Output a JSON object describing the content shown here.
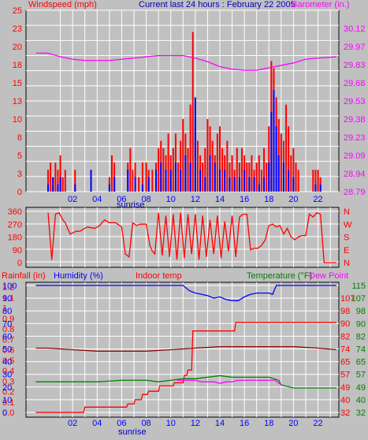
{
  "colors": {
    "background": "#c0c0c0",
    "grid": "#ffffff",
    "red": "#ff0000",
    "blue": "#0000ff",
    "magenta": "#ff00ff",
    "green": "#008000",
    "darkred": "#8b0000"
  },
  "chart_data": [
    {
      "type": "bar",
      "title": "Current last 24 hours : February 22 2005",
      "ylabel_left": "Windspeed (mph)",
      "ylabel_right": "Barometer (in.)",
      "x_ticks": [
        "02",
        "04",
        "06",
        "08",
        "10",
        "12",
        "14",
        "16",
        "18",
        "20",
        "22"
      ],
      "x_marker": "sunrise",
      "y_left_ticks": [
        "25",
        "23",
        "21",
        "19",
        "17",
        "15",
        "13",
        "11",
        "9",
        "7",
        "5",
        "3",
        "1"
      ],
      "y_left_labels": [
        "25",
        "23",
        "20",
        "18",
        "15",
        "13",
        "10",
        "8",
        "5",
        "3",
        "0"
      ],
      "y_right_labels": [
        "30.12",
        "29.97",
        "29.83",
        "29.68",
        "29.53",
        "29.38",
        "29.23",
        "29.09",
        "28.94",
        "28.79"
      ],
      "ylim_left": [
        0,
        25
      ],
      "ylim_right": [
        28.79,
        30.27
      ],
      "series": [
        {
          "name": "Windspeed (mph)",
          "color": "red",
          "type": "bar",
          "x": [
            0.0,
            0.2,
            0.4,
            0.6,
            0.8,
            1.0,
            1.2,
            1.4,
            2.2,
            3.5,
            5.0,
            5.2,
            5.4,
            6.5,
            6.7,
            6.9,
            7.1,
            7.4,
            7.7,
            8.0,
            8.2,
            8.5,
            8.8,
            9.0,
            9.2,
            9.4,
            9.6,
            9.8,
            10.0,
            10.2,
            10.4,
            10.6,
            10.8,
            11.0,
            11.2,
            11.4,
            11.6,
            11.8,
            12.0,
            12.2,
            12.4,
            12.6,
            12.8,
            13.0,
            13.2,
            13.4,
            13.6,
            13.8,
            14.0,
            14.2,
            14.4,
            14.6,
            14.8,
            15.0,
            15.2,
            15.4,
            15.6,
            15.8,
            16.0,
            16.2,
            16.4,
            16.6,
            16.8,
            17.0,
            17.2,
            17.4,
            17.6,
            17.8,
            18.0,
            18.2,
            18.4,
            18.6,
            18.8,
            19.0,
            19.2,
            19.4,
            19.6,
            19.8,
            20.0,
            20.2,
            20.4,
            21.6,
            21.8,
            22.0,
            22.2
          ],
          "values": [
            3,
            4,
            2,
            4,
            3,
            5,
            2,
            3,
            3,
            3,
            2,
            5,
            4,
            4,
            6,
            3,
            4,
            2,
            4,
            4,
            3,
            3,
            4,
            6,
            7,
            6,
            5,
            8,
            5,
            6,
            8,
            4,
            7,
            10,
            8,
            6,
            12,
            22,
            9,
            7,
            5,
            4,
            6,
            10,
            9,
            7,
            5,
            8,
            9,
            6,
            5,
            7,
            4,
            5,
            3,
            6,
            4,
            6,
            5,
            4,
            4,
            5,
            3,
            4,
            5,
            3,
            6,
            4,
            9,
            18,
            17,
            13,
            10,
            8,
            7,
            12,
            9,
            5,
            6,
            4,
            3,
            3,
            3,
            3,
            2
          ]
        },
        {
          "name": "Windspeed avg",
          "color": "blue",
          "type": "bar",
          "x": [
            0.0,
            0.4,
            0.8,
            1.0,
            2.2,
            3.5,
            5.0,
            5.4,
            6.5,
            7.1,
            7.7,
            8.2,
            8.8,
            9.2,
            9.6,
            10.0,
            10.4,
            10.8,
            11.2,
            11.6,
            12.0,
            12.4,
            12.8,
            13.2,
            13.6,
            14.0,
            14.4,
            14.8,
            15.2,
            15.6,
            16.0,
            16.4,
            16.8,
            17.2,
            17.6,
            18.0,
            18.2,
            18.4,
            18.6,
            18.8,
            19.2,
            19.6,
            20.0,
            21.8,
            22.2
          ],
          "values": [
            1,
            2,
            1,
            2,
            1,
            3,
            1,
            2,
            3,
            2,
            1,
            2,
            3,
            4,
            3,
            3,
            4,
            3,
            5,
            4,
            13,
            3,
            2,
            5,
            4,
            3,
            3,
            2,
            2,
            2,
            3,
            2,
            2,
            1,
            2,
            4,
            11,
            14,
            9,
            5,
            4,
            3,
            2,
            1,
            1
          ]
        },
        {
          "name": "Barometer (in.)",
          "color": "magenta",
          "type": "line",
          "x": [
            -1,
            0,
            1,
            2,
            3,
            4,
            5,
            6,
            7,
            8,
            9,
            10,
            11,
            12,
            13,
            14,
            15,
            16,
            17,
            18,
            19,
            20,
            21,
            22,
            23.5
          ],
          "values": [
            29.92,
            29.92,
            29.89,
            29.87,
            29.86,
            29.86,
            29.86,
            29.87,
            29.88,
            29.89,
            29.9,
            29.9,
            29.9,
            29.88,
            29.85,
            29.81,
            29.79,
            29.78,
            29.78,
            29.8,
            29.82,
            29.84,
            29.87,
            29.88,
            29.89
          ]
        }
      ]
    },
    {
      "type": "line",
      "ylabel_left": "",
      "y_left_labels": [
        "360",
        "270",
        "180",
        "90",
        "0"
      ],
      "y_right_labels": [
        "N",
        "W",
        "S",
        "E",
        "N"
      ],
      "ylim": [
        0,
        360
      ],
      "series": [
        {
          "name": "Wind direction",
          "color": "red",
          "x": [
            0,
            0.3,
            0.6,
            0.9,
            1.2,
            1.4,
            1.8,
            2.3,
            2.6,
            3.2,
            3.8,
            4.2,
            4.6,
            5.0,
            5.5,
            6.0,
            6.3,
            6.6,
            6.9,
            7.2,
            7.5,
            7.8,
            8.0,
            8.3,
            8.5,
            8.7,
            9.0,
            9.3,
            9.6,
            9.9,
            10.2,
            10.5,
            10.8,
            11.1,
            11.4,
            11.7,
            12.0,
            12.3,
            12.6,
            12.9,
            13.2,
            13.5,
            13.8,
            14.1,
            14.4,
            14.7,
            15.0,
            15.3,
            15.6,
            15.9,
            16.2,
            16.5,
            16.8,
            17.1,
            17.4,
            17.7,
            18.0,
            18.3,
            18.6,
            18.9,
            19.2,
            19.5,
            19.8,
            20.1,
            20.4,
            20.7,
            21.0,
            21.3,
            21.6,
            21.9,
            22.2,
            22.5,
            23.5
          ],
          "values": [
            350,
            20,
            340,
            350,
            300,
            280,
            200,
            220,
            220,
            250,
            240,
            260,
            300,
            280,
            280,
            250,
            60,
            40,
            280,
            260,
            270,
            270,
            270,
            120,
            80,
            60,
            350,
            50,
            330,
            40,
            340,
            20,
            350,
            30,
            340,
            60,
            340,
            20,
            330,
            40,
            300,
            60,
            330,
            30,
            290,
            80,
            330,
            40,
            320,
            340,
            340,
            90,
            100,
            100,
            120,
            160,
            260,
            270,
            250,
            260,
            200,
            240,
            180,
            160,
            180,
            190,
            190,
            340,
            320,
            350,
            340,
            0,
            0
          ]
        }
      ]
    },
    {
      "type": "line",
      "ylabel_left": "Rainfall (in)",
      "ylabel_mid": "Humidity (%)",
      "title": "Indoor temp",
      "ylabel_right": "Temperature (°F)",
      "ylabel_far_right": "Dew Point",
      "x_ticks": [
        "02",
        "04",
        "06",
        "08",
        "10",
        "12",
        "14",
        "16",
        "18",
        "20",
        "22"
      ],
      "x_marker": "sunrise",
      "rain_labels": [
        "1.2",
        "1.1",
        "1",
        "0.9",
        "0.8",
        "0.7",
        "0.6",
        "0.5",
        "0.4",
        "0.3",
        "0.2",
        "0.1",
        "0.0"
      ],
      "humidity_labels": [
        "100",
        "90",
        "80",
        "70",
        "60",
        "50",
        "40",
        "30",
        "20",
        "10",
        "0"
      ],
      "temp_labels": [
        "107",
        "98",
        "90",
        "82",
        "74",
        "65",
        "57",
        "49",
        "40",
        "32"
      ],
      "temp_labels_green": [
        "115",
        "107",
        "98",
        "90",
        "82",
        "74",
        "65",
        "57",
        "49",
        "40",
        "32"
      ],
      "series": [
        {
          "name": "Humidity (%)",
          "color": "blue",
          "x": [
            -1,
            0,
            2,
            4,
            6,
            8,
            10,
            11,
            11.5,
            12,
            12.5,
            13,
            13.5,
            14,
            14.5,
            15,
            15.5,
            16,
            16.5,
            17,
            17.5,
            18,
            18.3,
            18.6,
            19,
            20,
            22,
            23.5
          ],
          "values": [
            100,
            100,
            100,
            100,
            100,
            100,
            100,
            100,
            96,
            94,
            93,
            92,
            90,
            91,
            89,
            88,
            88,
            91,
            93,
            94,
            94,
            94,
            93,
            100,
            100,
            100,
            100,
            100
          ]
        },
        {
          "name": "Indoor temp",
          "color": "darkred",
          "x": [
            -1,
            0,
            2,
            4,
            6,
            8,
            10,
            12,
            14,
            16,
            18,
            20,
            22,
            23.5
          ],
          "values": [
            74,
            74,
            73,
            72,
            72,
            72,
            73,
            74,
            75,
            75,
            75,
            75,
            74,
            73
          ]
        },
        {
          "name": "Rainfall (in)",
          "color": "red",
          "x": [
            -1,
            2.9,
            3.0,
            6.4,
            6.5,
            7.0,
            7.1,
            7.6,
            7.7,
            8.1,
            8.2,
            9.0,
            9.1,
            10.2,
            10.3,
            11.0,
            11.1,
            11.3,
            11.4,
            11.7,
            11.8,
            15.2,
            15.3,
            23.5
          ],
          "values": [
            0.0,
            0.0,
            0.05,
            0.05,
            0.08,
            0.08,
            0.12,
            0.12,
            0.17,
            0.17,
            0.2,
            0.2,
            0.25,
            0.25,
            0.28,
            0.28,
            0.35,
            0.35,
            0.4,
            0.4,
            0.77,
            0.77,
            0.85,
            0.85
          ]
        },
        {
          "name": "Temperature (°F)",
          "color": "green",
          "x": [
            -1,
            0,
            2,
            4,
            6,
            8,
            9,
            10,
            11,
            12,
            13,
            14,
            15,
            16,
            17,
            18,
            18.8,
            19,
            20,
            21,
            22,
            23.5
          ],
          "values": [
            52,
            52,
            52,
            52,
            53,
            53,
            52,
            53,
            54,
            54,
            55,
            56,
            55,
            55,
            55,
            55,
            53,
            50,
            48,
            48,
            48,
            48
          ]
        },
        {
          "name": "Dew Point",
          "color": "magenta",
          "x": [
            10.5,
            11,
            11.5,
            12,
            12.5,
            13,
            13.5,
            14,
            14.5,
            15,
            15.5,
            16,
            16.5,
            17,
            17.5,
            18,
            18.5,
            19
          ],
          "values": [
            53,
            53,
            53,
            53,
            52,
            52,
            52,
            51,
            52,
            52,
            53,
            53,
            53,
            53,
            53,
            53,
            53,
            50
          ]
        }
      ]
    }
  ]
}
